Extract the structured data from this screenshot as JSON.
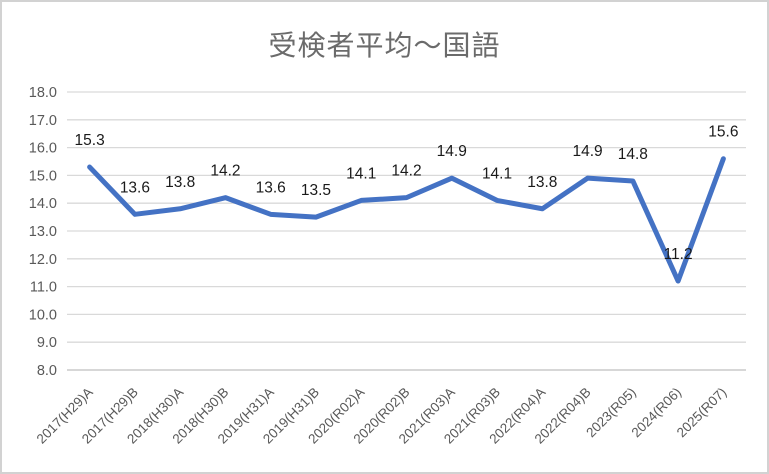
{
  "title": "受検者平均～国語",
  "chart_data": {
    "type": "line",
    "title": "受検者平均～国語",
    "categories": [
      "2017(H29)A",
      "2017(H29)B",
      "2018(H30)A",
      "2018(H30)B",
      "2019(H31)A",
      "2019(H31)B",
      "2020(R02)A",
      "2020(R02)B",
      "2021(R03)A",
      "2021(R03)B",
      "2022(R04)A",
      "2022(R04)B",
      "2023(R05)",
      "2024(R06)",
      "2025(R07)"
    ],
    "values": [
      15.3,
      13.6,
      13.8,
      14.2,
      13.6,
      13.5,
      14.1,
      14.2,
      14.9,
      14.1,
      13.8,
      14.9,
      14.8,
      11.2,
      15.6
    ],
    "data_labels": [
      "15.3",
      "13.6",
      "13.8",
      "14.2",
      "13.6",
      "13.5",
      "14.1",
      "14.2",
      "14.9",
      "14.1",
      "13.8",
      "14.9",
      "14.8",
      "11.2",
      "15.6"
    ],
    "ylim": [
      8.0,
      18.0
    ],
    "ytick_step": 1.0,
    "ytick_labels": [
      "18.0",
      "17.0",
      "16.0",
      "15.0",
      "14.0",
      "13.0",
      "12.0",
      "11.0",
      "10.0",
      "9.0",
      "8.0"
    ],
    "xlabel": "",
    "ylabel": "",
    "grid": true,
    "legend_position": "none",
    "colors": {
      "series_line": "#4472C4",
      "gridline": "#D9D9D9",
      "axis_line": "#BFBFBF",
      "axis_tick_label": "#595959",
      "data_label": "#1a1a1a",
      "title": "#6b6b6b",
      "chart_border": "#d2d2d2",
      "background": "#ffffff"
    }
  }
}
